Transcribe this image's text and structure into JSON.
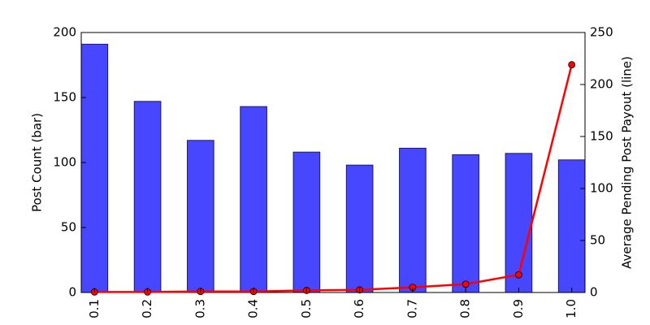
{
  "chart_data": {
    "type": "bar-line",
    "categories": [
      "0.1",
      "0.2",
      "0.3",
      "0.4",
      "0.5",
      "0.6",
      "0.7",
      "0.8",
      "0.9",
      "1.0"
    ],
    "series": [
      {
        "name": "Post Count (bar)",
        "type": "bar",
        "color": "#4747ff",
        "values": [
          191,
          147,
          117,
          143,
          108,
          98,
          111,
          106,
          107,
          102
        ]
      },
      {
        "name": "Average Pending Post Payout (line)",
        "type": "line",
        "axis": "y2",
        "color": "#ff0000",
        "values": [
          0.5,
          0.5,
          1,
          1,
          2,
          2.5,
          5,
          8,
          17,
          219
        ]
      }
    ],
    "ylabel": "Post Count (bar)",
    "y2label": "Average Pending Post Payout (line)",
    "ylim": [
      0,
      200
    ],
    "yticks": [
      0,
      50,
      100,
      150,
      200
    ],
    "y2lim": [
      0,
      250
    ],
    "y2ticks": [
      0,
      50,
      100,
      150,
      200,
      250
    ],
    "grid": false
  }
}
